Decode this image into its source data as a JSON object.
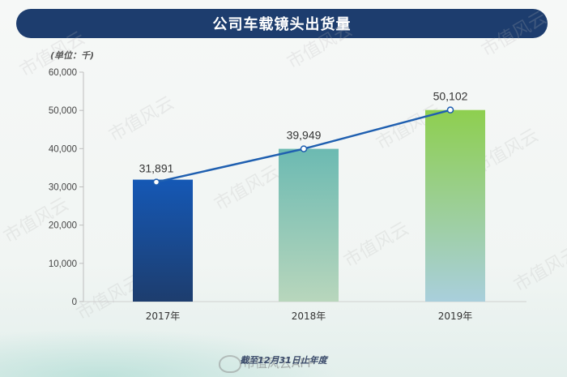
{
  "title": "公司车载镜头出货量",
  "unit_note": "(单位：千)",
  "footnote": "截至12月31日止年度",
  "watermark": {
    "brand": "市值风云APP",
    "repeat_text": "市值风云"
  },
  "colors": {
    "banner": "#1d3d6e",
    "line": "#1f5fb0",
    "bar_2017_top": "#1558b5",
    "bar_2017_bottom": "#1d3d6e",
    "bar_2018_top": "#6cbab2",
    "bar_2018_bottom": "#b8d6bc",
    "bar_2019_top": "#8ecf4f",
    "bar_2019_bottom": "#a9cfdc"
  },
  "chart_data": {
    "type": "bar",
    "title": "公司车载镜头出货量",
    "ylabel": "(单位：千)",
    "xlabel": "",
    "categories": [
      "2017年",
      "2018年",
      "2019年"
    ],
    "values": [
      31891,
      39949,
      50102
    ],
    "value_labels": [
      "31,891",
      "39,949",
      "50,102"
    ],
    "overlay_line": true,
    "ylim": [
      0,
      60000
    ],
    "y_ticks": [
      0,
      10000,
      20000,
      30000,
      40000,
      50000,
      60000
    ],
    "y_tick_labels": [
      "0",
      "10,000",
      "20,000",
      "30,000",
      "40,000",
      "50,000",
      "60,000"
    ],
    "grid": false,
    "legend": "none"
  }
}
